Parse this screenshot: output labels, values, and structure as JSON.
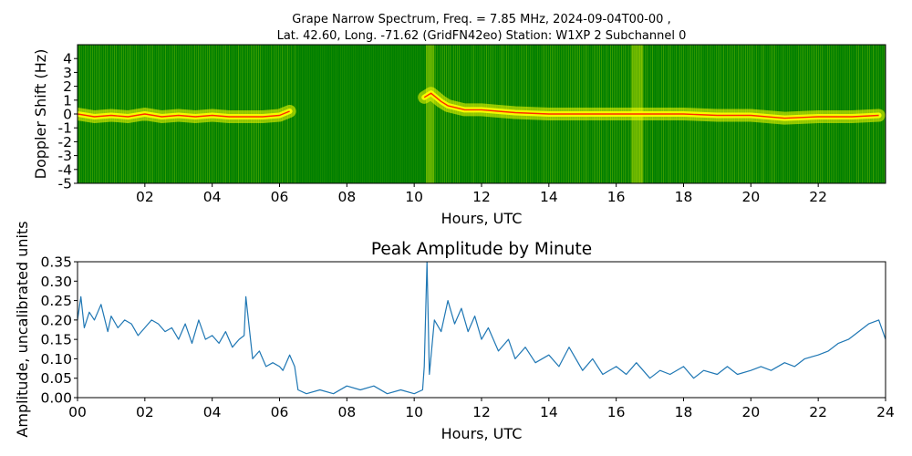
{
  "top": {
    "title_line1": "Grape Narrow Spectrum, Freq. = 7.85 MHz, 2024-09-04T00-00 ,",
    "title_line2": "Lat.  42.60, Long. -71.62 (GridFN42eo) Station: W1XP 2 Subchannel 0",
    "xlabel": "Hours, UTC",
    "ylabel": "Doppler Shift (Hz)"
  },
  "bottom": {
    "title": "Peak Amplitude by Minute",
    "xlabel": "Hours, UTC",
    "ylabel": "Amplitude, uncalibrated units"
  },
  "colors": {
    "spectrogram_background": "#007f00",
    "spectrogram_band": "#ffff00",
    "spectrogram_trace": "#ff2a00",
    "line": "#1f77b4"
  },
  "chart_data": [
    {
      "type": "heatmap",
      "title": "Grape Narrow Spectrum, Freq. = 7.85 MHz, 2024-09-04T00-00 , Lat.  42.60, Long. -71.62 (GridFN42eo) Station: W1XP 2 Subchannel 0",
      "xlabel": "Hours, UTC",
      "ylabel": "Doppler Shift (Hz)",
      "xlim": [
        0,
        24
      ],
      "ylim": [
        -5,
        5
      ],
      "xticks": [
        "02",
        "04",
        "06",
        "08",
        "10",
        "12",
        "14",
        "16",
        "18",
        "20",
        "22"
      ],
      "xtick_values": [
        2,
        4,
        6,
        8,
        10,
        12,
        14,
        16,
        18,
        20,
        22
      ],
      "yticks": [
        "-5",
        "-4",
        "-3",
        "-2",
        "-1",
        "0",
        "1",
        "2",
        "3",
        "4"
      ],
      "ytick_values": [
        -5,
        -4,
        -3,
        -2,
        -1,
        0,
        1,
        2,
        3,
        4
      ],
      "peak_doppler_trace": {
        "hours": [
          0,
          0.5,
          1,
          1.5,
          2,
          2.5,
          3,
          3.5,
          4,
          4.5,
          5,
          5.5,
          6,
          6.3,
          10.3,
          10.5,
          10.8,
          11,
          11.5,
          12,
          12.5,
          13,
          14,
          15,
          16,
          17,
          18,
          19,
          20,
          21,
          22,
          23,
          23.8
        ],
        "doppler_hz": [
          0.0,
          -0.2,
          -0.1,
          -0.2,
          0.0,
          -0.2,
          -0.1,
          -0.2,
          -0.1,
          -0.2,
          -0.2,
          -0.2,
          -0.1,
          0.2,
          1.2,
          1.5,
          0.9,
          0.6,
          0.3,
          0.3,
          0.2,
          0.1,
          0.0,
          0.0,
          0.0,
          0.0,
          0.0,
          -0.1,
          -0.1,
          -0.3,
          -0.2,
          -0.2,
          -0.1
        ]
      }
    },
    {
      "type": "line",
      "title": "Peak Amplitude by Minute",
      "xlabel": "Hours, UTC",
      "ylabel": "Amplitude, uncalibrated units",
      "xlim": [
        0,
        24
      ],
      "ylim": [
        0,
        0.35
      ],
      "xticks": [
        "00",
        "02",
        "04",
        "06",
        "08",
        "10",
        "12",
        "14",
        "16",
        "18",
        "20",
        "22",
        "24"
      ],
      "xtick_values": [
        0,
        2,
        4,
        6,
        8,
        10,
        12,
        14,
        16,
        18,
        20,
        22,
        24
      ],
      "yticks": [
        "0.00",
        "0.05",
        "0.10",
        "0.15",
        "0.20",
        "0.25",
        "0.30",
        "0.35"
      ],
      "ytick_values": [
        0,
        0.05,
        0.1,
        0.15,
        0.2,
        0.25,
        0.3,
        0.35
      ],
      "series": [
        {
          "x": [
            0,
            0.1,
            0.2,
            0.35,
            0.5,
            0.7,
            0.9,
            1.0,
            1.2,
            1.4,
            1.6,
            1.8,
            2.0,
            2.2,
            2.4,
            2.6,
            2.8,
            3.0,
            3.2,
            3.4,
            3.6,
            3.8,
            4.0,
            4.2,
            4.4,
            4.6,
            4.8,
            4.95,
            5.0,
            5.2,
            5.4,
            5.6,
            5.8,
            6.0,
            6.1,
            6.3,
            6.45,
            6.55,
            6.8,
            7.2,
            7.6,
            8.0,
            8.4,
            8.8,
            9.2,
            9.6,
            10.0,
            10.25,
            10.3,
            10.38,
            10.45,
            10.6,
            10.8,
            11.0,
            11.2,
            11.4,
            11.6,
            11.8,
            12.0,
            12.2,
            12.5,
            12.8,
            13.0,
            13.3,
            13.6,
            14.0,
            14.3,
            14.6,
            15.0,
            15.3,
            15.6,
            16.0,
            16.3,
            16.6,
            17.0,
            17.3,
            17.6,
            18.0,
            18.3,
            18.6,
            19.0,
            19.3,
            19.6,
            20.0,
            20.3,
            20.6,
            21.0,
            21.3,
            21.6,
            22.0,
            22.3,
            22.6,
            22.9,
            23.2,
            23.5,
            23.8,
            24.0
          ],
          "values": [
            0.2,
            0.26,
            0.18,
            0.22,
            0.2,
            0.24,
            0.17,
            0.21,
            0.18,
            0.2,
            0.19,
            0.16,
            0.18,
            0.2,
            0.19,
            0.17,
            0.18,
            0.15,
            0.19,
            0.14,
            0.2,
            0.15,
            0.16,
            0.14,
            0.17,
            0.13,
            0.15,
            0.16,
            0.26,
            0.1,
            0.12,
            0.08,
            0.09,
            0.08,
            0.07,
            0.11,
            0.08,
            0.02,
            0.01,
            0.02,
            0.01,
            0.03,
            0.02,
            0.03,
            0.01,
            0.02,
            0.01,
            0.02,
            0.08,
            0.35,
            0.06,
            0.2,
            0.17,
            0.25,
            0.19,
            0.23,
            0.17,
            0.21,
            0.15,
            0.18,
            0.12,
            0.15,
            0.1,
            0.13,
            0.09,
            0.11,
            0.08,
            0.13,
            0.07,
            0.1,
            0.06,
            0.08,
            0.06,
            0.09,
            0.05,
            0.07,
            0.06,
            0.08,
            0.05,
            0.07,
            0.06,
            0.08,
            0.06,
            0.07,
            0.08,
            0.07,
            0.09,
            0.08,
            0.1,
            0.11,
            0.12,
            0.14,
            0.15,
            0.17,
            0.19,
            0.2,
            0.15
          ]
        }
      ]
    }
  ]
}
